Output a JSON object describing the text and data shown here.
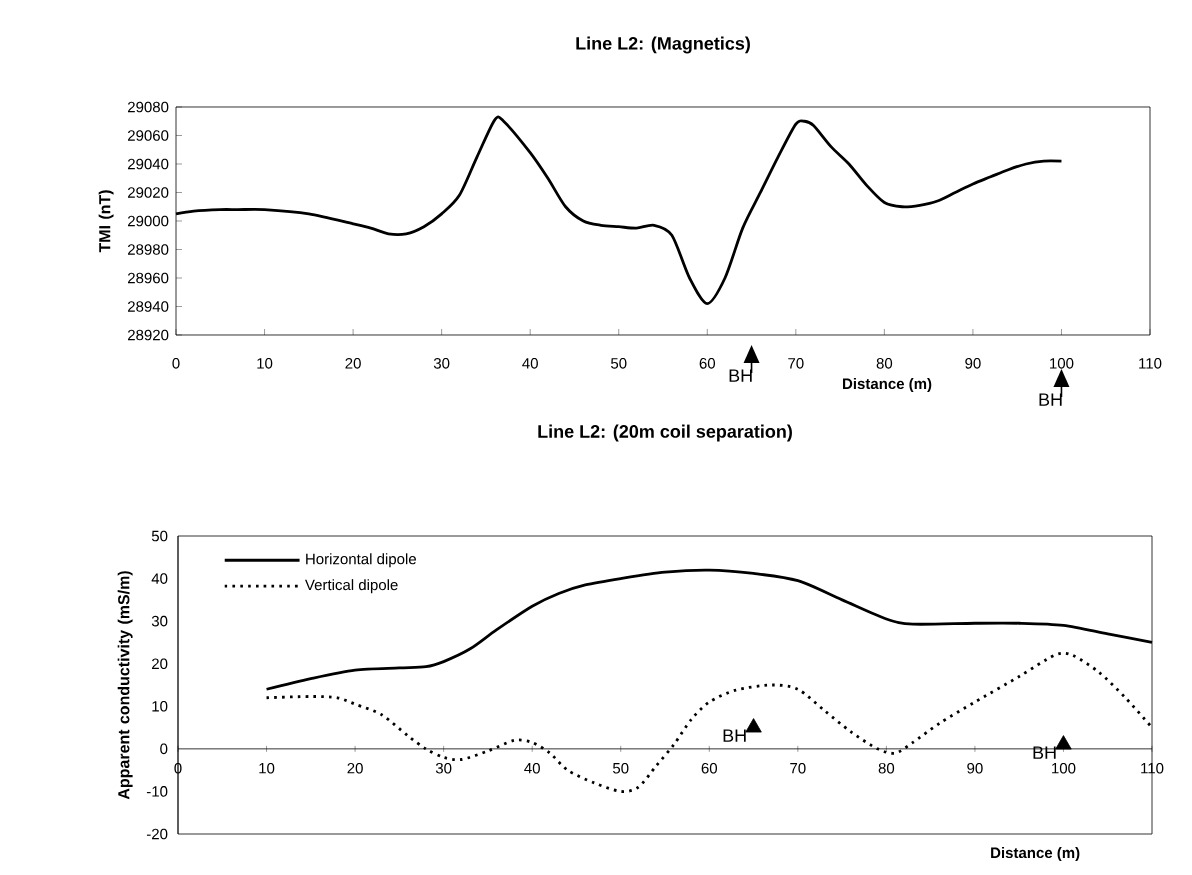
{
  "chart_data": [
    {
      "type": "line",
      "title": "Line L2: (Magnetics)",
      "xlabel": "Distance (m)",
      "ylabel": "TMI (nT)",
      "x": [
        0,
        2,
        5,
        7,
        10,
        15,
        20,
        22,
        24,
        26,
        28,
        30,
        32,
        34,
        36,
        37,
        40,
        42,
        44,
        46,
        48,
        50,
        52,
        54,
        56,
        58,
        60,
        62,
        64,
        66,
        68,
        70,
        71,
        72,
        74,
        76,
        78,
        80,
        82,
        84,
        86,
        88,
        90,
        92,
        94,
        96,
        98,
        100
      ],
      "series": [
        {
          "color": "#000000",
          "values": [
            29005,
            29007,
            29008,
            29008,
            29008,
            29005,
            28998,
            28995,
            28991,
            28991,
            28996,
            29005,
            29018,
            29045,
            29071,
            29070,
            29048,
            29030,
            29010,
            29000,
            28997,
            28996,
            28995,
            28997,
            28990,
            28960,
            28942,
            28960,
            28995,
            29020,
            29045,
            29068,
            29070,
            29067,
            29052,
            29040,
            29025,
            29013,
            29010,
            29011,
            29014,
            29020,
            29026,
            29031,
            29036,
            29040,
            29042,
            29042
          ]
        }
      ],
      "xlim": [
        0,
        110
      ],
      "xticks": [
        0,
        10,
        20,
        30,
        40,
        50,
        60,
        70,
        80,
        90,
        100,
        110
      ],
      "ylim": [
        28920,
        29080
      ],
      "yticks": [
        28920,
        28940,
        28960,
        28980,
        29000,
        29020,
        29040,
        29060,
        29080
      ],
      "line_style": "solid",
      "marker": "none",
      "grid": false,
      "legend": false,
      "annotations": [
        "BH",
        "BH"
      ]
    },
    {
      "type": "line",
      "title": "Line L2: (20m coil separation)",
      "xlabel": "Distance (m)",
      "ylabel": "Apparent conductivity (mS/m)",
      "series": [
        {
          "name": "Horizontal dipole",
          "color": "#000000",
          "line_style": "solid",
          "x": [
            10,
            15,
            20,
            25,
            28,
            30,
            33,
            36,
            40,
            43,
            46,
            50,
            55,
            60,
            65,
            70,
            75,
            80,
            83,
            90,
            95,
            100,
            105,
            110
          ],
          "values": [
            14,
            16.5,
            18.5,
            19,
            19.3,
            20.5,
            23.5,
            28,
            33.5,
            36.5,
            38.5,
            40,
            41.5,
            42,
            41.2,
            39.5,
            35,
            30.5,
            29.3,
            29.5,
            29.5,
            29,
            27,
            25
          ]
        },
        {
          "type": "scatter",
          "color": "#000000",
          "marker": "triangle",
          "x": [
            65,
            100
          ],
          "values": [
            5,
            1
          ]
        },
        {
          "name": "Vertical dipole",
          "color": "#000000",
          "line_style": "dotted",
          "x": [
            10,
            15,
            18,
            20,
            23,
            26,
            28,
            30,
            32,
            35,
            38,
            40,
            42,
            44,
            47,
            50,
            52,
            54,
            56,
            58,
            60,
            63,
            67,
            70,
            73,
            76,
            79,
            81,
            83,
            86,
            90,
            95,
            99,
            101,
            104,
            107,
            110
          ],
          "values": [
            12,
            12.3,
            12,
            10.5,
            8,
            3,
            0,
            -2,
            -2.5,
            -0.5,
            2,
            1.5,
            -1,
            -5,
            -8,
            -10,
            -9,
            -4,
            1,
            7,
            11,
            13.8,
            15,
            14,
            9,
            4,
            0,
            -1,
            1.5,
            6,
            11,
            17,
            22,
            22,
            18,
            12,
            5
          ]
        }
      ],
      "xlim": [
        0,
        110
      ],
      "xticks": [
        0,
        10,
        20,
        30,
        40,
        50,
        60,
        70,
        80,
        90,
        100,
        110
      ],
      "ylim": [
        -20,
        50
      ],
      "yticks": [
        -20,
        -10,
        0,
        10,
        20,
        30,
        40,
        50
      ],
      "marker": "none",
      "grid": false,
      "legend": "top left",
      "annotations": [
        "BH",
        "BH"
      ]
    }
  ]
}
